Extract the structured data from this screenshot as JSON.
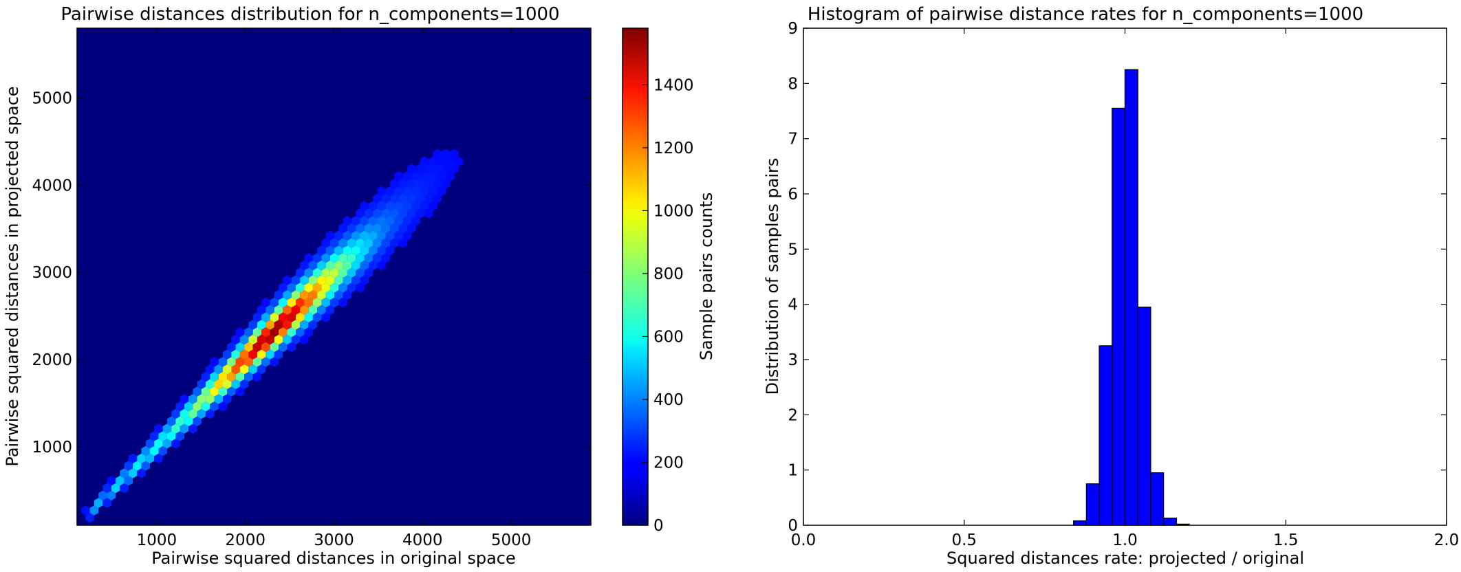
{
  "chart_data": [
    {
      "type": "heatmap",
      "subtype": "hexbin",
      "title": "Pairwise distances distribution for n_components=1000",
      "xlabel": "Pairwise squared distances in original space",
      "ylabel": "Pairwise squared distances in projected space",
      "xlim": [
        100,
        5900
      ],
      "ylim": [
        100,
        5800
      ],
      "xticks": [
        1000,
        2000,
        3000,
        4000,
        5000
      ],
      "yticks": [
        1000,
        2000,
        3000,
        4000,
        5000
      ],
      "colorbar": {
        "label": "Sample pairs counts",
        "colormap": "jet",
        "range": [
          0,
          1580
        ],
        "ticks": [
          0,
          200,
          400,
          600,
          800,
          1000,
          1200,
          1400
        ]
      },
      "density_ridge": [
        {
          "x": 250,
          "y": 250,
          "count": 300
        },
        {
          "x": 500,
          "y": 500,
          "count": 380
        },
        {
          "x": 750,
          "y": 750,
          "count": 430
        },
        {
          "x": 1000,
          "y": 1000,
          "count": 480
        },
        {
          "x": 1250,
          "y": 1250,
          "count": 560
        },
        {
          "x": 1500,
          "y": 1500,
          "count": 740
        },
        {
          "x": 1750,
          "y": 1750,
          "count": 1050
        },
        {
          "x": 2000,
          "y": 2000,
          "count": 1330
        },
        {
          "x": 2250,
          "y": 2250,
          "count": 1560
        },
        {
          "x": 2500,
          "y": 2500,
          "count": 1480
        },
        {
          "x": 2750,
          "y": 2750,
          "count": 1150
        },
        {
          "x": 3000,
          "y": 3000,
          "count": 800
        },
        {
          "x": 3250,
          "y": 3250,
          "count": 480
        },
        {
          "x": 3500,
          "y": 3500,
          "count": 250
        },
        {
          "x": 3750,
          "y": 3750,
          "count": 130
        },
        {
          "x": 4000,
          "y": 4000,
          "count": 70
        },
        {
          "x": 4250,
          "y": 4250,
          "count": 30
        },
        {
          "x": 4500,
          "y": 4500,
          "count": 10
        }
      ]
    },
    {
      "type": "bar",
      "subtype": "histogram",
      "title": "Histogram of pairwise distance rates for n_components=1000",
      "xlabel": "Squared distances rate: projected / original",
      "ylabel": "Distribution of samples pairs",
      "xlim": [
        0.0,
        2.0
      ],
      "ylim": [
        0,
        9
      ],
      "xticks": [
        "0.0",
        "0.5",
        "1.0",
        "1.5",
        "2.0"
      ],
      "yticks": [
        0,
        1,
        2,
        3,
        4,
        5,
        6,
        7,
        8,
        9
      ],
      "bar_color": "#0000ff",
      "bins": [
        {
          "x0": 0.84,
          "x1": 0.88,
          "value": 0.08
        },
        {
          "x0": 0.88,
          "x1": 0.92,
          "value": 0.75
        },
        {
          "x0": 0.92,
          "x1": 0.96,
          "value": 3.25
        },
        {
          "x0": 0.96,
          "x1": 1.0,
          "value": 7.55
        },
        {
          "x0": 1.0,
          "x1": 1.04,
          "value": 8.25
        },
        {
          "x0": 1.04,
          "x1": 1.08,
          "value": 3.95
        },
        {
          "x0": 1.08,
          "x1": 1.12,
          "value": 0.95
        },
        {
          "x0": 1.12,
          "x1": 1.16,
          "value": 0.13
        },
        {
          "x0": 1.16,
          "x1": 1.2,
          "value": 0.02
        }
      ]
    }
  ]
}
